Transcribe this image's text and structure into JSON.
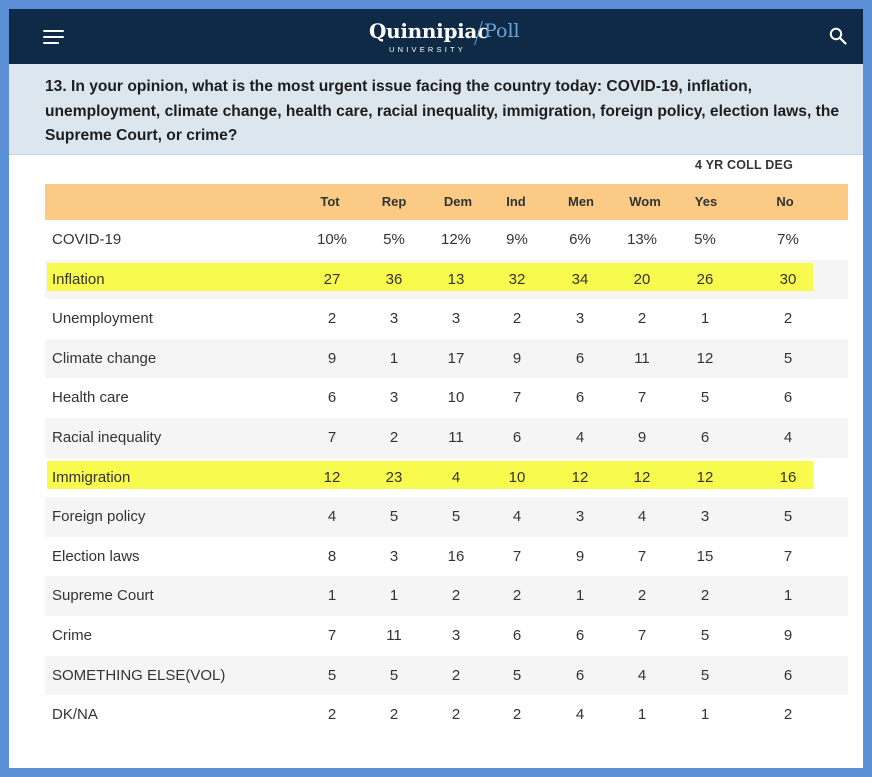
{
  "header": {
    "logo_name": "Quinnipiac",
    "logo_poll": "Poll",
    "logo_sub": "UNIVERSITY",
    "menu_icon": "hamburger-menu-icon",
    "search_icon": "search-icon"
  },
  "question": {
    "text": "13. In your opinion, what is the most urgent issue facing the country today: COVID-19, inflation, unemployment, climate change, health care, racial inequality, immigration, foreign policy, election laws, the Supreme Court, or crime?"
  },
  "table": {
    "group_label": "4 YR COLL DEG",
    "columns": [
      "Tot",
      "Rep",
      "Dem",
      "Ind",
      "Men",
      "Wom",
      "Yes",
      "No"
    ],
    "highlight_color": "#f8fb4d",
    "header_color": "#fbcb85",
    "rows": [
      {
        "label": "COVID-19",
        "values": [
          "10%",
          "5%",
          "12%",
          "9%",
          "6%",
          "13%",
          "5%",
          "7%"
        ],
        "highlight": false
      },
      {
        "label": "Inflation",
        "values": [
          "27",
          "36",
          "13",
          "32",
          "34",
          "20",
          "26",
          "30"
        ],
        "highlight": true
      },
      {
        "label": "Unemployment",
        "values": [
          "2",
          "3",
          "3",
          "2",
          "3",
          "2",
          "1",
          "2"
        ],
        "highlight": false
      },
      {
        "label": "Climate change",
        "values": [
          "9",
          "1",
          "17",
          "9",
          "6",
          "11",
          "12",
          "5"
        ],
        "highlight": false
      },
      {
        "label": "Health care",
        "values": [
          "6",
          "3",
          "10",
          "7",
          "6",
          "7",
          "5",
          "6"
        ],
        "highlight": false
      },
      {
        "label": "Racial inequality",
        "values": [
          "7",
          "2",
          "11",
          "6",
          "4",
          "9",
          "6",
          "4"
        ],
        "highlight": false
      },
      {
        "label": "Immigration",
        "values": [
          "12",
          "23",
          "4",
          "10",
          "12",
          "12",
          "12",
          "16"
        ],
        "highlight": true
      },
      {
        "label": "Foreign policy",
        "values": [
          "4",
          "5",
          "5",
          "4",
          "3",
          "4",
          "3",
          "5"
        ],
        "highlight": false
      },
      {
        "label": "Election laws",
        "values": [
          "8",
          "3",
          "16",
          "7",
          "9",
          "7",
          "15",
          "7"
        ],
        "highlight": false
      },
      {
        "label": "Supreme Court",
        "values": [
          "1",
          "1",
          "2",
          "2",
          "1",
          "2",
          "2",
          "1"
        ],
        "highlight": false
      },
      {
        "label": "Crime",
        "values": [
          "7",
          "11",
          "3",
          "6",
          "6",
          "7",
          "5",
          "9"
        ],
        "highlight": false
      },
      {
        "label": "SOMETHING ELSE(VOL)",
        "values": [
          "5",
          "5",
          "2",
          "5",
          "6",
          "4",
          "5",
          "6"
        ],
        "highlight": false
      },
      {
        "label": "DK/NA",
        "values": [
          "2",
          "2",
          "2",
          "2",
          "4",
          "1",
          "1",
          "2"
        ],
        "highlight": false
      }
    ]
  }
}
